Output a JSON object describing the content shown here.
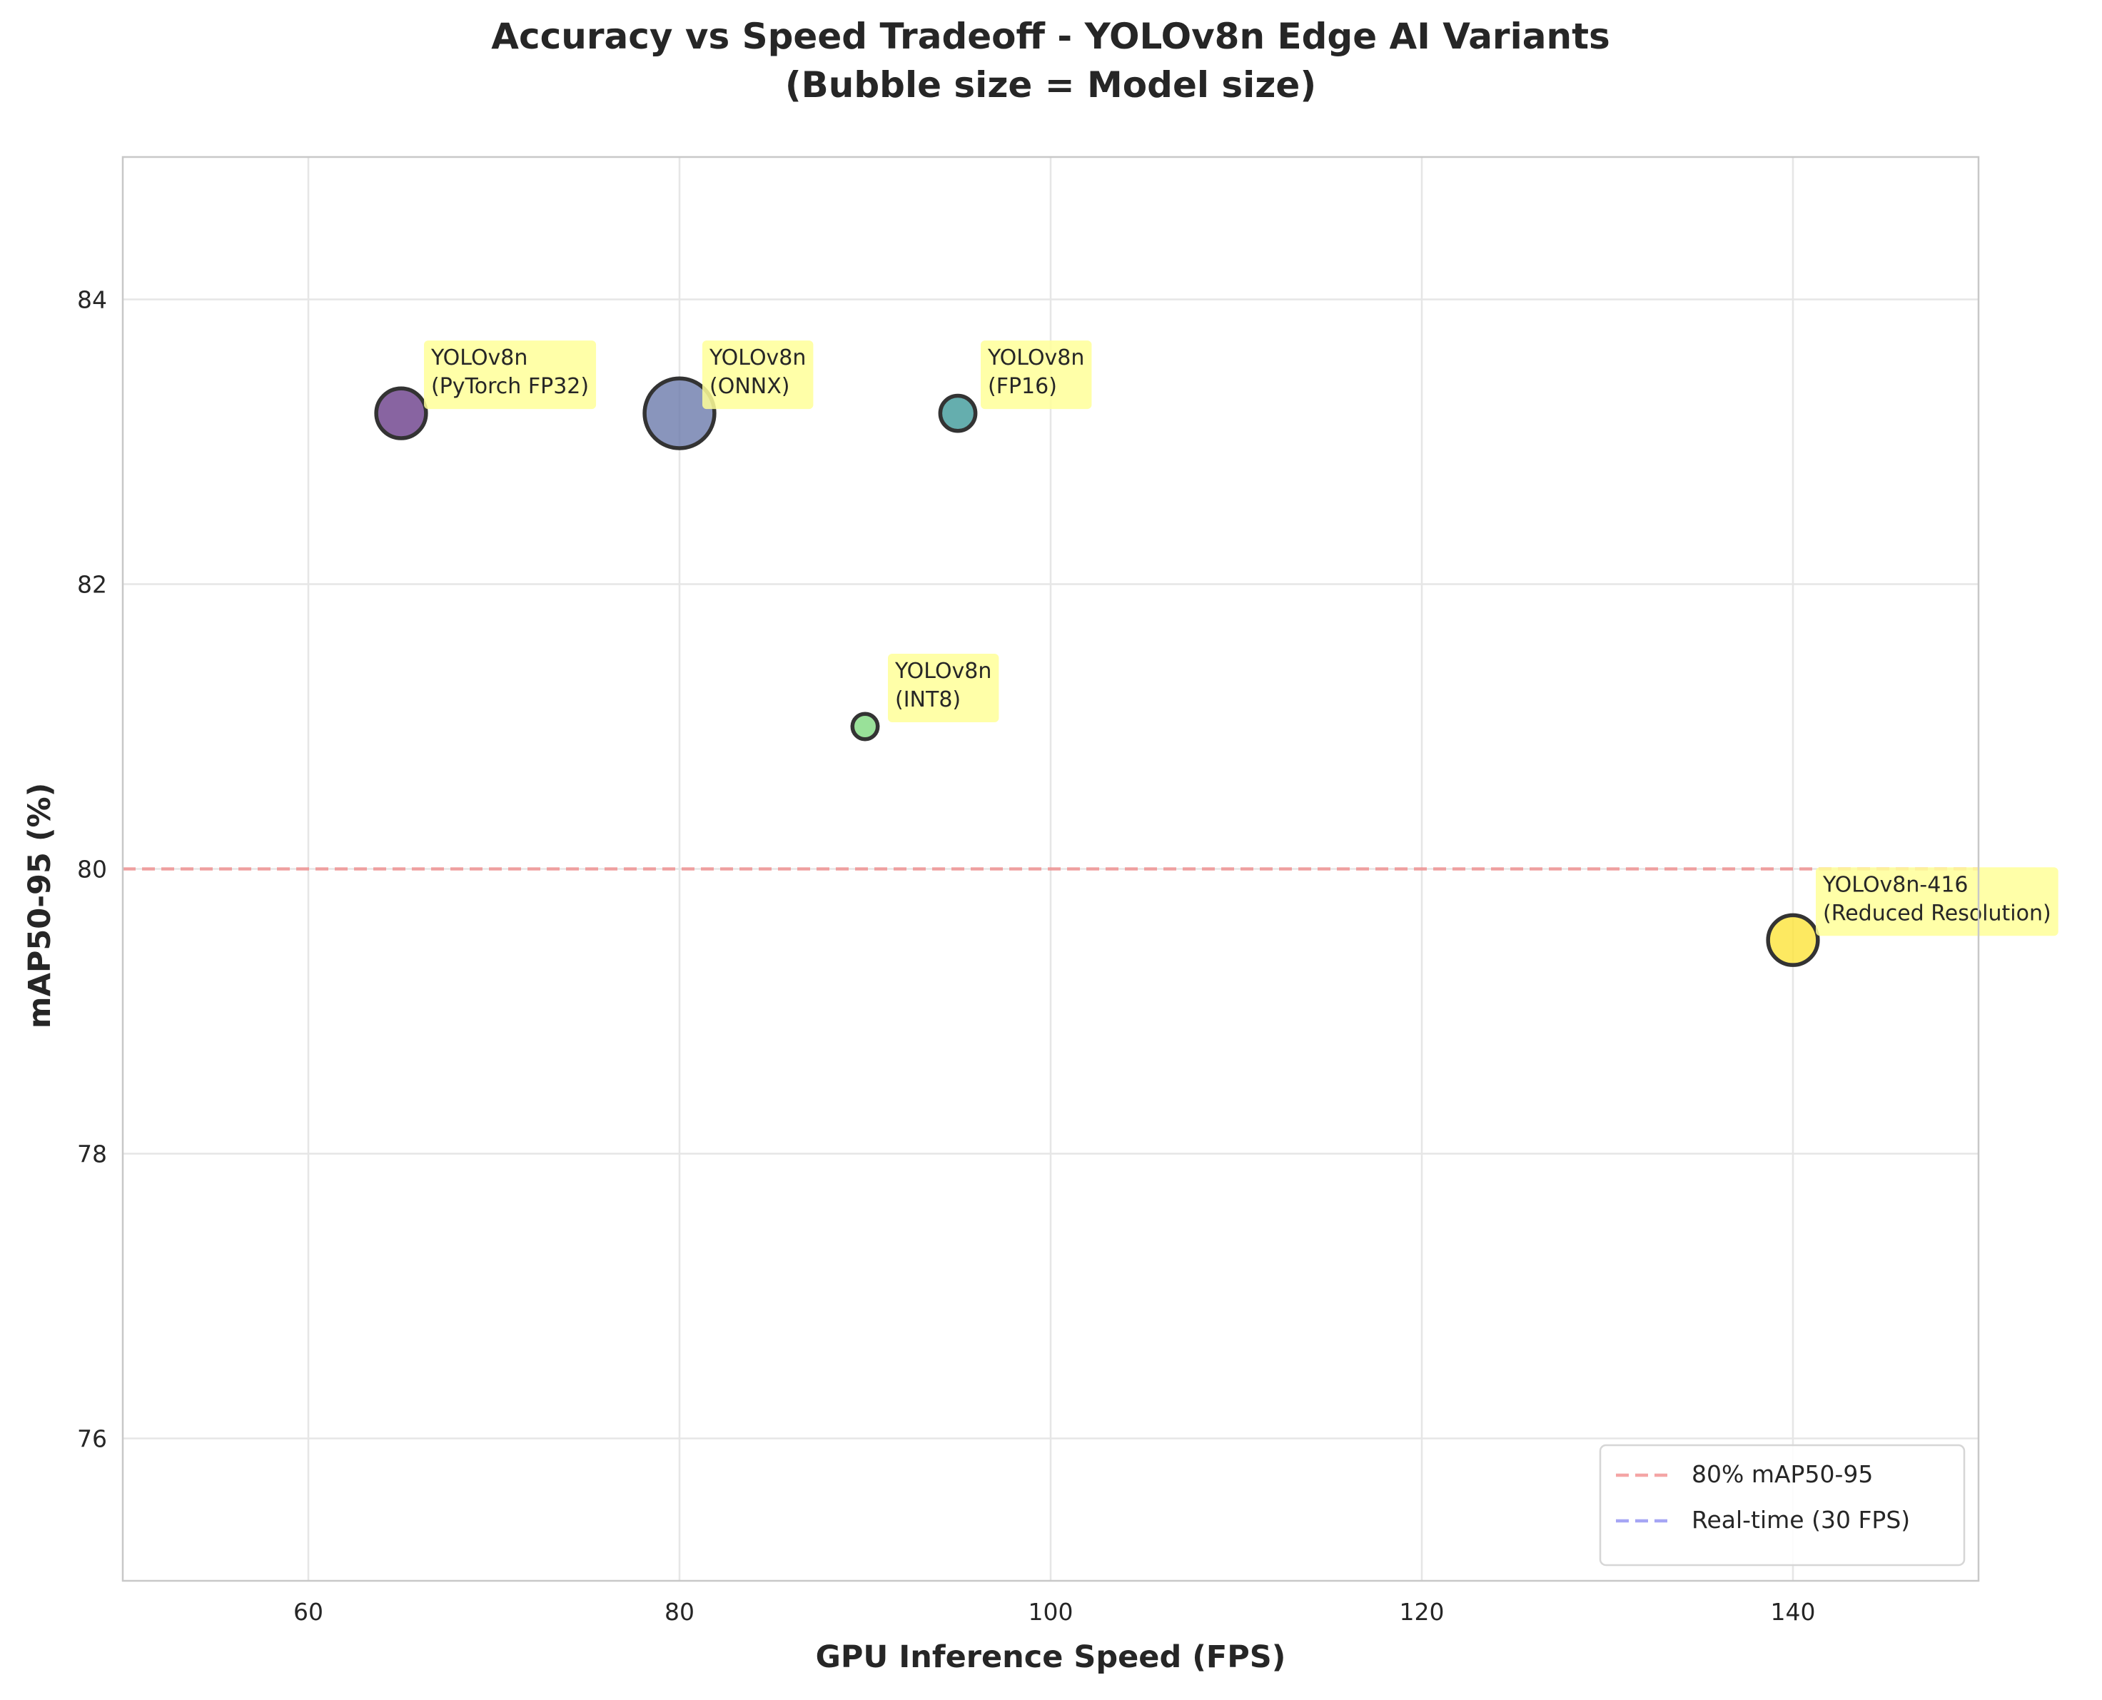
{
  "chart_data": {
    "type": "scatter",
    "title_lines": [
      "Accuracy vs Speed Tradeoff - YOLOv8n Edge AI Variants",
      "(Bubble size = Model size)"
    ],
    "xlabel": "GPU Inference Speed (FPS)",
    "ylabel": "mAP50-95 (%)",
    "xlim": [
      50,
      150
    ],
    "ylim": [
      75,
      85
    ],
    "xticks": [
      60,
      80,
      100,
      120,
      140
    ],
    "yticks": [
      76,
      78,
      80,
      82,
      84
    ],
    "grid": true,
    "points": [
      {
        "label_lines": [
          "YOLOv8n",
          "(PyTorch FP32)"
        ],
        "x": 65,
        "y": 83.2,
        "relative_size": 6.2,
        "color": "#6a3d8a"
      },
      {
        "label_lines": [
          "YOLOv8n",
          "(ONNX)"
        ],
        "x": 80,
        "y": 83.2,
        "relative_size": 12.2,
        "color": "#6b7bab"
      },
      {
        "label_lines": [
          "YOLOv8n",
          "(FP16)"
        ],
        "x": 95,
        "y": 83.2,
        "relative_size": 3.1,
        "color": "#3f9a9a"
      },
      {
        "label_lines": [
          "YOLOv8n",
          "(INT8)"
        ],
        "x": 90,
        "y": 81.0,
        "relative_size": 1.6,
        "color": "#7fd97f"
      },
      {
        "label_lines": [
          "YOLOv8n-416",
          "(Reduced Resolution)"
        ],
        "x": 140,
        "y": 79.5,
        "relative_size": 6.2,
        "color": "#fde43a"
      }
    ],
    "reference_lines": [
      {
        "orientation": "horizontal",
        "value": 80,
        "label": "80% mAP50-95",
        "color": "#f08080"
      },
      {
        "orientation": "vertical",
        "value": 30,
        "label": "Real-time (30 FPS)",
        "color": "#8080f0"
      }
    ],
    "legend": {
      "placement": "lower-right"
    },
    "label_box_color": "#ffff99"
  }
}
